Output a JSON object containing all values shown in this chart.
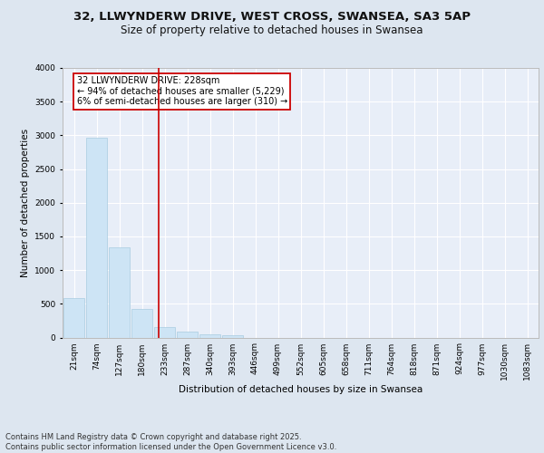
{
  "title1": "32, LLWYNDERW DRIVE, WEST CROSS, SWANSEA, SA3 5AP",
  "title2": "Size of property relative to detached houses in Swansea",
  "xlabel": "Distribution of detached houses by size in Swansea",
  "ylabel": "Number of detached properties",
  "bar_labels": [
    "21sqm",
    "74sqm",
    "127sqm",
    "180sqm",
    "233sqm",
    "287sqm",
    "340sqm",
    "393sqm",
    "446sqm",
    "499sqm",
    "552sqm",
    "605sqm",
    "658sqm",
    "711sqm",
    "764sqm",
    "818sqm",
    "871sqm",
    "924sqm",
    "977sqm",
    "1030sqm",
    "1083sqm"
  ],
  "bar_values": [
    590,
    2970,
    1340,
    430,
    160,
    90,
    50,
    30,
    0,
    0,
    0,
    0,
    0,
    0,
    0,
    0,
    0,
    0,
    0,
    0,
    0
  ],
  "bar_color": "#cde4f5",
  "bar_edge_color": "#a8cce0",
  "property_line_bin": 3.72,
  "annotation_text": "32 LLWYNDERW DRIVE: 228sqm\n← 94% of detached houses are smaller (5,229)\n6% of semi-detached houses are larger (310) →",
  "annotation_box_color": "#ffffff",
  "annotation_box_edgecolor": "#cc0000",
  "vline_color": "#cc0000",
  "ylim": [
    0,
    4000
  ],
  "yticks": [
    0,
    500,
    1000,
    1500,
    2000,
    2500,
    3000,
    3500,
    4000
  ],
  "background_color": "#dde6f0",
  "plot_bg_color": "#e8eef8",
  "grid_color": "#ffffff",
  "footer": "Contains HM Land Registry data © Crown copyright and database right 2025.\nContains public sector information licensed under the Open Government Licence v3.0.",
  "title_fontsize": 9.5,
  "subtitle_fontsize": 8.5,
  "label_fontsize": 7.5,
  "tick_fontsize": 6.5,
  "annot_fontsize": 7.0,
  "footer_fontsize": 6.0
}
